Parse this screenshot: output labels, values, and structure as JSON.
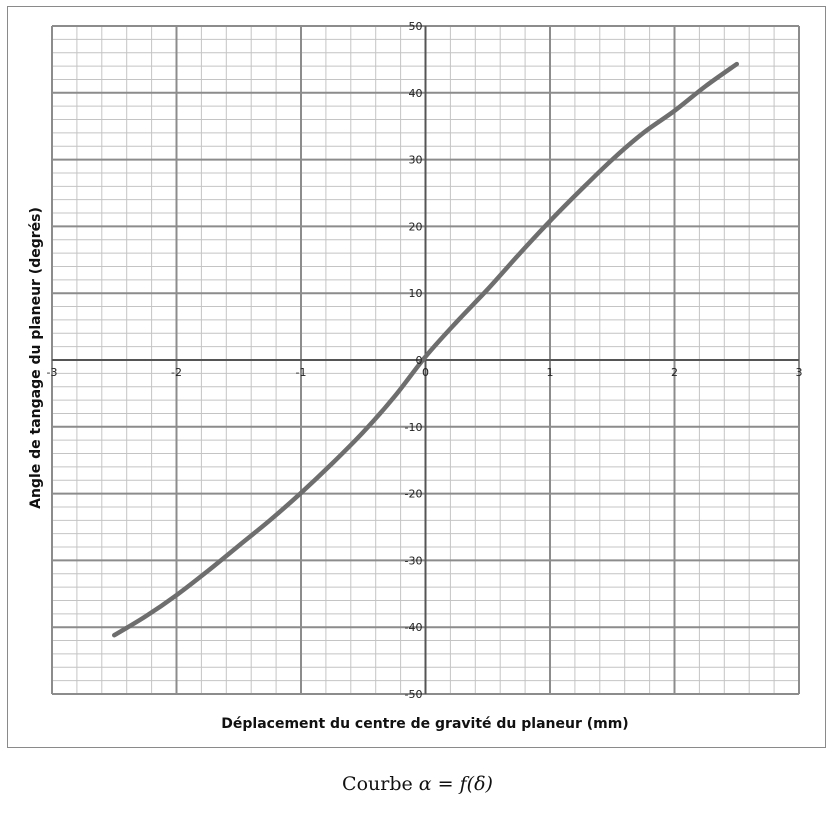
{
  "chart_data": {
    "type": "line",
    "title": "",
    "xlabel": "Déplacement du centre de gravité du planeur (mm)",
    "ylabel": "Angle de tangage du planeur (degrés)",
    "xlim": [
      -3,
      3
    ],
    "ylim": [
      -50,
      50
    ],
    "x_ticks": [
      -3,
      -2,
      -1,
      0,
      1,
      2,
      3
    ],
    "y_ticks": [
      -50,
      -40,
      -30,
      -20,
      -10,
      0,
      10,
      20,
      30,
      40,
      50
    ],
    "x_tick_labels": [
      "-3",
      "-2",
      "-1",
      "0",
      "1",
      "2",
      "3"
    ],
    "y_tick_labels": [
      "-50",
      "-40",
      "-30",
      "-20",
      "-10",
      "0",
      "10",
      "20",
      "30",
      "40",
      "50"
    ],
    "x_minor_step": 0.2,
    "y_minor_step": 2,
    "grid": true,
    "series": [
      {
        "color": "#6e6e6e",
        "x": [
          -2.5,
          -2.25,
          -2.0,
          -1.75,
          -1.5,
          -1.25,
          -1.0,
          -0.75,
          -0.5,
          -0.25,
          0.0,
          0.25,
          0.5,
          0.75,
          1.0,
          1.25,
          1.5,
          1.75,
          2.0,
          2.25,
          2.5
        ],
        "y": [
          -41.2,
          -38.4,
          -35.2,
          -31.6,
          -27.8,
          -24.0,
          -19.9,
          -15.5,
          -10.8,
          -5.5,
          0.5,
          5.7,
          10.6,
          15.8,
          20.8,
          25.5,
          30.0,
          34.0,
          37.3,
          41.0,
          44.3
        ]
      }
    ]
  },
  "caption": {
    "prefix": "Courbe",
    "formula": "α = f(δ)"
  }
}
